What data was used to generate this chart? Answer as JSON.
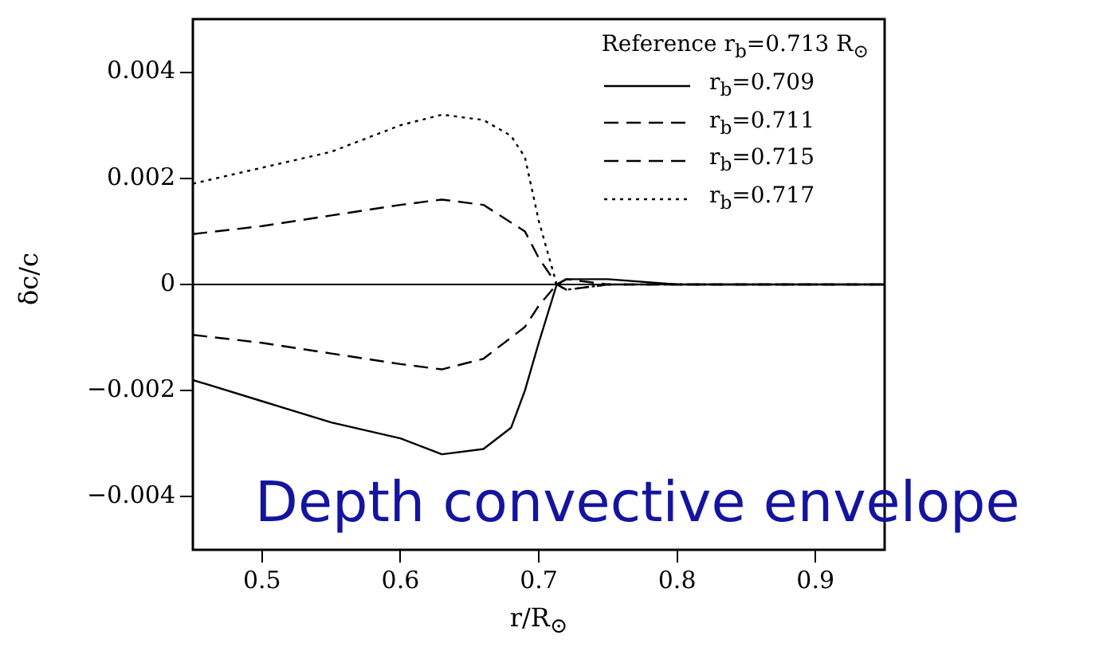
{
  "chart_data": {
    "type": "line",
    "xlabel": "r/R$_{⊙}$",
    "ylabel": "δc/c",
    "legend_title": "Reference r$_{b}$=0.713 R$_{⊙}$",
    "legend": "top right",
    "grid": false,
    "marker": "none",
    "xlim": [
      0.45,
      0.95
    ],
    "xticks": [
      0.5,
      0.6,
      0.7,
      0.8,
      0.9
    ],
    "ylim": [
      -0.005,
      0.005
    ],
    "yticks": [
      {
        "value": -0.004,
        "label": "−0.004"
      },
      {
        "value": -0.002,
        "label": "−0.002"
      },
      0,
      0.002,
      0.004
    ],
    "ref_lines": [
      {
        "axis": "y",
        "value": 0,
        "color": "#000000",
        "line_style": "solid"
      }
    ],
    "annotations": [
      "Depth convective envelope"
    ],
    "series": [
      {
        "name": "r$_{b}$=0.709",
        "color": "#000000",
        "line_style": "solid",
        "x": [
          0.45,
          0.5,
          0.55,
          0.6,
          0.63,
          0.66,
          0.68,
          0.69,
          0.7,
          0.713,
          0.72,
          0.75,
          0.8,
          0.85,
          0.9,
          0.95
        ],
        "values": [
          -0.0018,
          -0.0022,
          -0.0026,
          -0.0029,
          -0.0032,
          -0.0031,
          -0.0027,
          -0.002,
          -0.0011,
          0,
          0.0001,
          0.0001,
          0,
          0,
          0,
          0
        ]
      },
      {
        "name": "r$_{b}$=0.711",
        "color": "#000000",
        "line_style": "dashed",
        "x": [
          0.45,
          0.5,
          0.55,
          0.6,
          0.63,
          0.66,
          0.69,
          0.7,
          0.713,
          0.72,
          0.75,
          0.8,
          0.85,
          0.9,
          0.95
        ],
        "values": [
          -0.00095,
          -0.0011,
          -0.0013,
          -0.0015,
          -0.0016,
          -0.0014,
          -0.0008,
          -0.0004,
          0,
          0.0001,
          0,
          0,
          0,
          0,
          0
        ]
      },
      {
        "name": "r$_{b}$=0.715",
        "color": "#000000",
        "line_style": "dashed",
        "x": [
          0.45,
          0.5,
          0.55,
          0.6,
          0.63,
          0.66,
          0.69,
          0.7,
          0.713,
          0.72,
          0.75,
          0.8,
          0.85,
          0.9,
          0.95
        ],
        "values": [
          0.00095,
          0.0011,
          0.0013,
          0.0015,
          0.0016,
          0.0015,
          0.001,
          0.0005,
          0,
          -0.0001,
          0,
          0,
          0,
          0,
          0
        ]
      },
      {
        "name": "r$_{b}$=0.717",
        "color": "#000000",
        "line_style": "dotted",
        "x": [
          0.45,
          0.5,
          0.55,
          0.6,
          0.63,
          0.66,
          0.68,
          0.69,
          0.7,
          0.713,
          0.72,
          0.75,
          0.8,
          0.85,
          0.9,
          0.95
        ],
        "values": [
          0.0019,
          0.0022,
          0.0025,
          0.003,
          0.0032,
          0.0031,
          0.0028,
          0.0024,
          0.0012,
          0,
          -0.0001,
          0,
          0,
          0,
          0,
          0
        ]
      }
    ]
  }
}
